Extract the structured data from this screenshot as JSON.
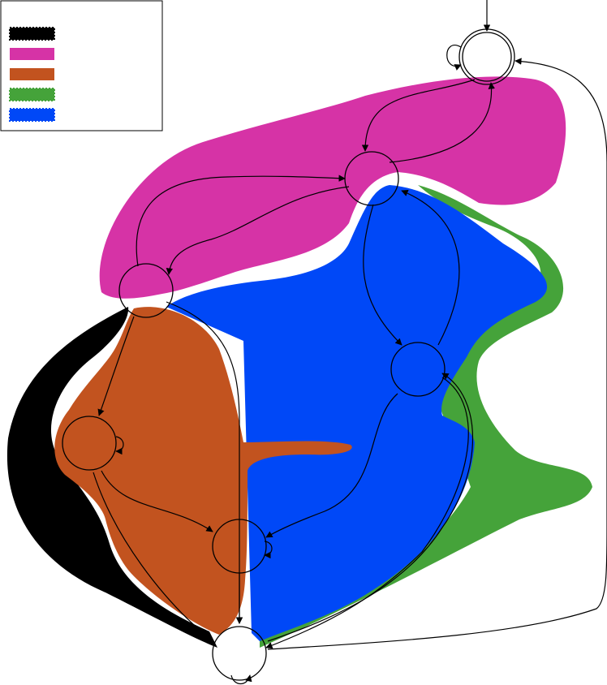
{
  "legend": {
    "items": [
      {
        "label": "",
        "color": "#000000",
        "style": "dotted-thick"
      },
      {
        "label": "",
        "color": "#d633a6",
        "style": "solid"
      },
      {
        "label": "",
        "color": "#c2531f",
        "style": "solid"
      },
      {
        "label": "",
        "color": "#45a33a",
        "style": "dotted"
      },
      {
        "label": "",
        "color": "#0048f7",
        "style": "dotted"
      }
    ]
  },
  "diagram": {
    "type": "state-graph with colored region overlays",
    "region_colors": {
      "black": "#000000",
      "magenta": "#d633a6",
      "orange": "#c2531f",
      "green": "#45a33a",
      "blue": "#0048f7"
    },
    "nodes": [
      {
        "id": "s0",
        "accepting": true,
        "initial": true,
        "self_loop": true
      },
      {
        "id": "s1"
      },
      {
        "id": "s2"
      },
      {
        "id": "s3"
      },
      {
        "id": "s4",
        "self_loop": true
      },
      {
        "id": "s5",
        "self_loop": true
      },
      {
        "id": "s6",
        "self_loop": true
      }
    ],
    "edges": [
      {
        "from": "s0",
        "to": "s1"
      },
      {
        "from": "s1",
        "to": "s0"
      },
      {
        "from": "s1",
        "to": "s2"
      },
      {
        "from": "s2",
        "to": "s1"
      },
      {
        "from": "s1",
        "to": "s3"
      },
      {
        "from": "s3",
        "to": "s1"
      },
      {
        "from": "s2",
        "to": "s4"
      },
      {
        "from": "s2",
        "to": "s6"
      },
      {
        "from": "s4",
        "to": "s5"
      },
      {
        "from": "s4",
        "to": "s6"
      },
      {
        "from": "s5",
        "to": "s6"
      },
      {
        "from": "s3",
        "to": "s5"
      },
      {
        "from": "s3",
        "to": "s6"
      },
      {
        "from": "s6",
        "to": "s3"
      },
      {
        "from": "s6",
        "to": "s0"
      }
    ]
  }
}
